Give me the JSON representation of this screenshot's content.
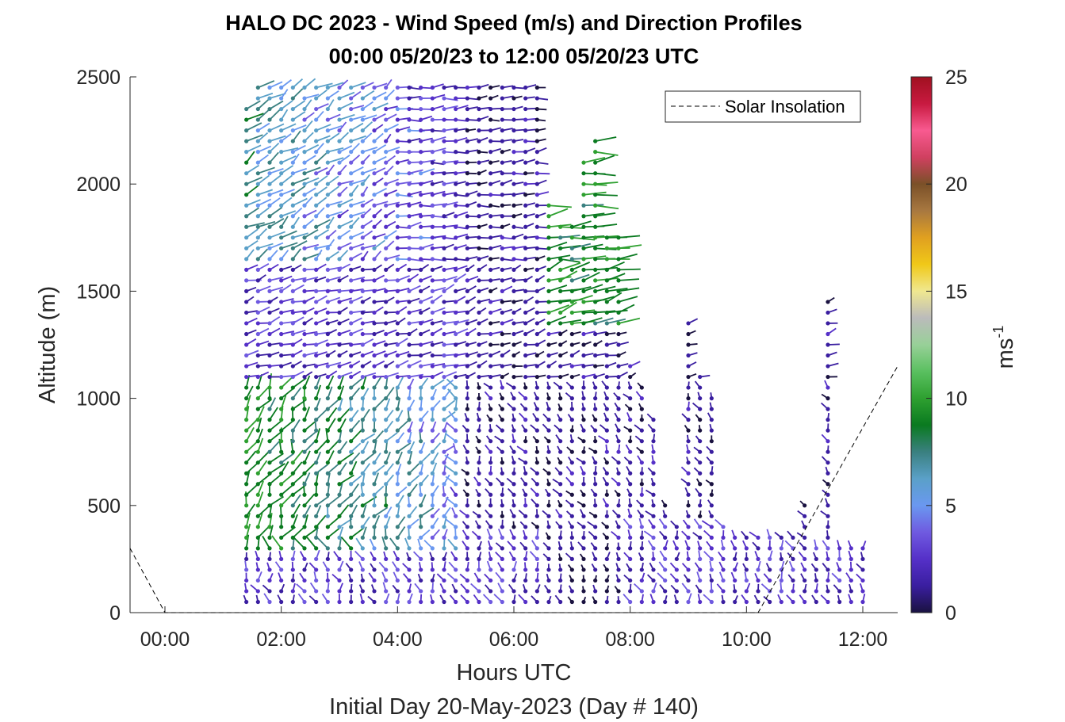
{
  "chart_data": {
    "type": "wind-barb-profile",
    "title_line1": "HALO DC 2023 - Wind Speed (m/s) and Direction Profiles",
    "title_line2": "00:00 05/20/23 to 12:00 05/20/23  UTC",
    "xlabel": "Hours UTC",
    "xlabel2": "Initial Day 20-May-2023 (Day # 140)",
    "ylabel": "Altitude (m)",
    "x_ticks": [
      "00:00",
      "02:00",
      "04:00",
      "06:00",
      "08:00",
      "10:00",
      "12:00"
    ],
    "x_tick_hours": [
      0,
      2,
      4,
      6,
      8,
      10,
      12
    ],
    "xlim_hours": [
      -0.6,
      12.6
    ],
    "y_ticks": [
      "0",
      "500",
      "1000",
      "1500",
      "2000",
      "2500"
    ],
    "y_tick_values": [
      0,
      500,
      1000,
      1500,
      2000,
      2500
    ],
    "ylim": [
      0,
      2500
    ],
    "legend": {
      "label": "Solar Insolation",
      "placement": "top-right"
    },
    "colorbar": {
      "label": "ms",
      "label_exponent": "-1",
      "range": [
        0,
        25
      ],
      "ticks": [
        "0",
        "5",
        "10",
        "15",
        "20",
        "25"
      ],
      "tick_values": [
        0,
        5,
        10,
        15,
        20,
        25
      ],
      "colors": [
        "#1a1240",
        "#3a1ea0",
        "#5530c8",
        "#6f5ae0",
        "#6a98f0",
        "#5aa0c8",
        "#3a8080",
        "#0a7a20",
        "#2ea030",
        "#5ac060",
        "#98d098",
        "#bbbbbb",
        "#f0e890",
        "#f0c818",
        "#e0a020",
        "#a87840",
        "#7a5028",
        "#d04060",
        "#f85a90",
        "#c81a40",
        "#a01020"
      ]
    },
    "solar_insolation_curve": [
      {
        "hour": -0.6,
        "alt": 300
      },
      {
        "hour": 0.0,
        "alt": 0
      },
      {
        "hour": 10.2,
        "alt": 0
      },
      {
        "hour": 12.6,
        "alt": 1150
      }
    ],
    "profile_hours": [
      1.4,
      1.6,
      1.8,
      2.0,
      2.2,
      2.4,
      2.6,
      2.8,
      3.0,
      3.2,
      3.4,
      3.6,
      3.8,
      4.0,
      4.2,
      4.4,
      4.6,
      4.8,
      5.0,
      5.2,
      5.4,
      5.6,
      5.8,
      6.0,
      6.2,
      6.4,
      6.6,
      6.8,
      7.0,
      7.2,
      7.4,
      7.6,
      7.8,
      8.0,
      8.2,
      8.4,
      8.6,
      8.8,
      9.0,
      9.2,
      9.4,
      9.6,
      9.8,
      10.0,
      10.2,
      10.4,
      10.6,
      10.8,
      11.0,
      11.2,
      11.4,
      11.6,
      11.8,
      12.0
    ],
    "profile_top_altitudes": [
      2350,
      2450,
      2450,
      2450,
      2450,
      2450,
      2450,
      2450,
      2450,
      2450,
      2450,
      2450,
      2450,
      2450,
      2450,
      2450,
      2450,
      2450,
      2450,
      2450,
      2450,
      2450,
      2450,
      2450,
      2450,
      2450,
      1900,
      1800,
      1800,
      2100,
      2200,
      1750,
      1750,
      1150,
      1050,
      900,
      500,
      400,
      1350,
      1100,
      1000,
      400,
      350,
      350,
      350,
      350,
      350,
      350,
      500,
      300,
      1480,
      300,
      300,
      300
    ]
  }
}
